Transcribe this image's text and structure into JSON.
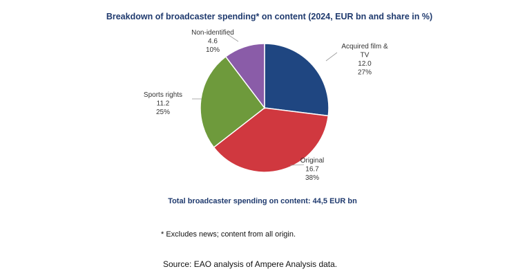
{
  "chart_data": {
    "type": "pie",
    "title": "Breakdown of broadcaster spending* on content  (2024, EUR bn and share in %)",
    "slices": [
      {
        "name": "Acquired film & TV",
        "name_lines": [
          "Acquired film &",
          "TV"
        ],
        "value": 12.0,
        "value_label": "12.0",
        "share_label": "27%",
        "color": "#1f4681"
      },
      {
        "name": "Original",
        "name_lines": [
          "Original"
        ],
        "value": 16.7,
        "value_label": "16.7",
        "share_label": "38%",
        "color": "#d0383f"
      },
      {
        "name": "Sports rights",
        "name_lines": [
          "Sports rights"
        ],
        "value": 11.2,
        "value_label": "11.2",
        "share_label": "25%",
        "color": "#6e9a3c"
      },
      {
        "name": "Non-identified",
        "name_lines": [
          "Non-identified"
        ],
        "value": 4.6,
        "value_label": "4.6",
        "share_label": "10%",
        "color": "#8a5ca8"
      }
    ],
    "start": "top",
    "direction": "clockwise",
    "total_label": "Total broadcaster spending on content: 44,5 EUR bn",
    "footnote": "* Excludes news; content from all origin.",
    "source": "Source: EAO analysis of Ampere Analysis data."
  }
}
